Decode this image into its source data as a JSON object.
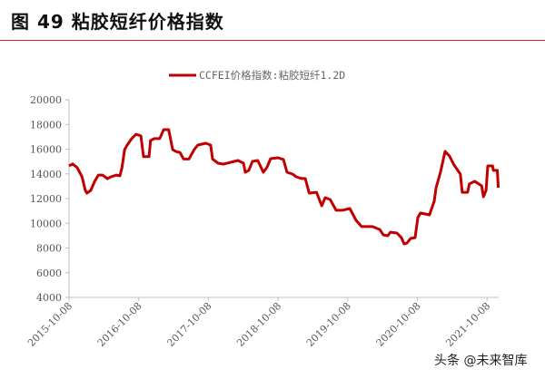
{
  "figure_title": "图  49  粘胶短纤价格指数",
  "watermark": "头条 @未来智库",
  "chart_data": {
    "type": "line",
    "title": "",
    "xlabel": "",
    "ylabel": "",
    "ylim": [
      4000,
      20000
    ],
    "yticks": [
      4000,
      6000,
      8000,
      10000,
      12000,
      14000,
      16000,
      18000,
      20000
    ],
    "xticks": [
      "2015-10-08",
      "2016-10-08",
      "2017-10-08",
      "2018-10-08",
      "2019-10-08",
      "2020-10-08",
      "2021-10-08"
    ],
    "grid": false,
    "legend_position": "top-center",
    "series": [
      {
        "name": "CCFEI价格指数:粘胶短纤1.2D",
        "color": "#c00000",
        "x": [
          "2015-10-08",
          "2015-10-27",
          "2015-11-20",
          "2015-12-15",
          "2016-01-01",
          "2016-01-10",
          "2016-01-30",
          "2016-02-20",
          "2016-03-10",
          "2016-04-01",
          "2016-04-27",
          "2016-05-15",
          "2016-06-13",
          "2016-07-01",
          "2016-07-12",
          "2016-07-26",
          "2016-08-08",
          "2016-09-01",
          "2016-09-24",
          "2016-10-19",
          "2016-11-02",
          "2016-12-01",
          "2016-12-09",
          "2016-12-28",
          "2017-01-26",
          "2017-02-16",
          "2017-03-14",
          "2017-04-04",
          "2017-04-22",
          "2017-05-12",
          "2017-05-31",
          "2017-06-28",
          "2017-07-26",
          "2017-08-14",
          "2017-09-24",
          "2017-10-20",
          "2017-10-30",
          "2017-11-28",
          "2017-12-26",
          "2018-02-03",
          "2018-03-12",
          "2018-04-10",
          "2018-04-19",
          "2018-05-08",
          "2018-05-27",
          "2018-06-24",
          "2018-07-23",
          "2018-08-10",
          "2018-08-30",
          "2018-10-08",
          "2018-11-05",
          "2018-11-24",
          "2018-12-23",
          "2019-01-11",
          "2019-02-08",
          "2019-02-28",
          "2019-03-20",
          "2019-04-28",
          "2019-05-25",
          "2019-06-12",
          "2019-07-08",
          "2019-08-08",
          "2019-09-10",
          "2019-10-19",
          "2019-11-21",
          "2019-12-20",
          "2020-02-15",
          "2020-03-24",
          "2020-04-12",
          "2020-05-05",
          "2020-05-19",
          "2020-06-22",
          "2020-07-16",
          "2020-07-30",
          "2020-08-14",
          "2020-09-02",
          "2020-09-26",
          "2020-10-10",
          "2020-10-24",
          "2020-12-10",
          "2021-01-04",
          "2021-01-14",
          "2021-02-06",
          "2021-03-02",
          "2021-03-25",
          "2021-04-18",
          "2021-05-21",
          "2021-05-31",
          "2021-06-28",
          "2021-07-07",
          "2021-08-04",
          "2021-09-10",
          "2021-09-19",
          "2021-10-03",
          "2021-10-12",
          "2021-11-06",
          "2021-11-10",
          "2021-12-01",
          "2021-12-06"
        ],
        "y": [
          14650,
          14800,
          14500,
          13760,
          12660,
          12440,
          12660,
          13400,
          13900,
          13900,
          13610,
          13760,
          13900,
          13840,
          14500,
          15960,
          16330,
          16850,
          17210,
          17070,
          15400,
          15400,
          16700,
          16850,
          16850,
          17580,
          17580,
          15960,
          15800,
          15730,
          15200,
          15200,
          15960,
          16330,
          16480,
          16330,
          15200,
          14860,
          14790,
          14940,
          15080,
          14860,
          14130,
          14280,
          15010,
          15080,
          14130,
          14500,
          15230,
          15300,
          15160,
          14130,
          13980,
          13760,
          13620,
          13620,
          12440,
          12510,
          11410,
          12070,
          11920,
          11050,
          11050,
          11200,
          10240,
          9730,
          9730,
          9500,
          9060,
          8990,
          9280,
          9210,
          8840,
          8330,
          8400,
          8770,
          8840,
          10460,
          10830,
          10680,
          11780,
          12880,
          14130,
          15820,
          15450,
          14720,
          13980,
          12510,
          12510,
          13180,
          13400,
          13030,
          12150,
          12660,
          14640,
          14640,
          14280,
          14280,
          12880
        ]
      }
    ]
  }
}
